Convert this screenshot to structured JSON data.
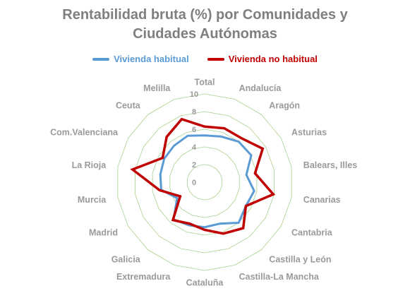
{
  "chart_data": {
    "type": "radar",
    "title": [
      "Rentabilidad bruta (%) por Comunidades y",
      "Ciudades Autónomas"
    ],
    "categories": [
      "Total",
      "Andalucía",
      "Aragón",
      "Asturias",
      "Balears, Illes",
      "Canarias",
      "Cantabria",
      "Castilla y León",
      "Castilla-La Mancha",
      "Cataluña",
      "Extremadura",
      "Galicia",
      "Madrid",
      "Murcia",
      "La Rioja",
      "Com.Valenciana",
      "Ceuta",
      "Melilla"
    ],
    "ticks": [
      "0",
      "2",
      "4",
      "6",
      "8",
      "10"
    ],
    "rlim": [
      0,
      10
    ],
    "grid": true,
    "legend_position": "top",
    "series": [
      {
        "name": "Vivienda habitual",
        "color": "#5b9bd5",
        "values": [
          5.3,
          5.5,
          6.0,
          6.1,
          4.8,
          5.7,
          5.4,
          6.0,
          5.0,
          5.1,
          5.2,
          5.5,
          3.6,
          5.0,
          5.1,
          5.3,
          5.4,
          5.6
        ]
      },
      {
        "name": "Vivienda no habitual",
        "color": "#c00000",
        "values": [
          6.3,
          6.5,
          6.5,
          7.6,
          5.8,
          7.9,
          5.4,
          6.8,
          6.2,
          5.4,
          5.0,
          5.6,
          3.2,
          5.2,
          8.3,
          5.5,
          6.7,
          7.6
        ]
      }
    ]
  }
}
